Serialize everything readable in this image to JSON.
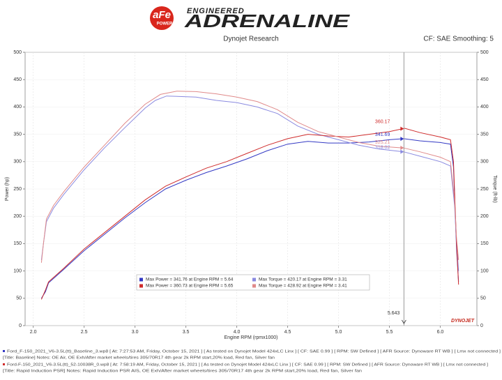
{
  "header": {
    "brand": "aFe",
    "brand_sub": "POWER",
    "tagline": "ENGINEERED",
    "product": "ADRENALINE"
  },
  "chart_data": {
    "type": "line",
    "title": "Dynojet Research",
    "subtitle": "CF: SAE Smoothing: 5",
    "x_label": "Engine RPM (rpmx1000)",
    "y_label": "Power (hp)",
    "y2_label": "Torque (ft-lb)",
    "xlim": [
      1.92,
      6.36
    ],
    "xticks": [
      {
        "value": 2,
        "label": "2.0"
      },
      2.5,
      {
        "value": 3,
        "label": "3.0"
      },
      3.5,
      {
        "value": 4,
        "label": "4.0"
      },
      4.5,
      {
        "value": 5,
        "label": "5.0"
      },
      5.5,
      {
        "value": 6,
        "label": "6.0"
      }
    ],
    "ylim": [
      0,
      500
    ],
    "yticks": [
      0,
      50,
      100,
      150,
      200,
      250,
      300,
      350,
      400,
      450,
      500
    ],
    "y2lim": [
      0,
      500
    ],
    "y2ticks": [
      0,
      50,
      100,
      150,
      200,
      250,
      300,
      350,
      400,
      450,
      500
    ],
    "grid": true,
    "series": [
      {
        "name": "Max Power = 341.76 at Engine RPM = 5.64",
        "color": "#3339c4",
        "x": [
          2.08,
          2.12,
          2.15,
          2.3,
          2.5,
          2.7,
          2.9,
          3.1,
          3.3,
          3.5,
          3.7,
          3.9,
          4.1,
          4.3,
          4.5,
          4.7,
          4.9,
          5.1,
          5.3,
          5.5,
          5.64,
          5.8,
          6.0,
          6.1,
          6.13,
          6.16,
          6.18
        ],
        "values": [
          50,
          62,
          78,
          103,
          137,
          167,
          197,
          225,
          250,
          266,
          280,
          292,
          305,
          320,
          332,
          337,
          334,
          334,
          336,
          340,
          342,
          338,
          335,
          332,
          290,
          140,
          80
        ]
      },
      {
        "name": "Max Torque = 420.17 at Engine RPM = 3.31",
        "color": "#8a8ae0",
        "axis": "y2",
        "x": [
          2.08,
          2.1,
          2.13,
          2.2,
          2.3,
          2.5,
          2.7,
          2.9,
          3.1,
          3.2,
          3.31,
          3.6,
          3.8,
          4.0,
          4.2,
          4.4,
          4.6,
          4.8,
          5.0,
          5.2,
          5.4,
          5.64,
          5.8,
          6.0,
          6.1,
          6.14,
          6.16,
          6.18
        ],
        "values": [
          120,
          150,
          190,
          215,
          240,
          285,
          325,
          362,
          398,
          412,
          420,
          418,
          412,
          408,
          400,
          388,
          365,
          350,
          340,
          330,
          323,
          318,
          310,
          300,
          292,
          220,
          150,
          100
        ]
      },
      {
        "name": "Max Power = 360.73 at Engine RPM = 5.65",
        "color": "#cf2b2b",
        "x": [
          2.08,
          2.12,
          2.15,
          2.3,
          2.5,
          2.7,
          2.9,
          3.1,
          3.3,
          3.5,
          3.7,
          3.9,
          4.1,
          4.3,
          4.5,
          4.7,
          4.9,
          5.1,
          5.3,
          5.5,
          5.65,
          5.8,
          6.0,
          6.1,
          6.13,
          6.16,
          6.18
        ],
        "values": [
          48,
          65,
          80,
          105,
          140,
          170,
          200,
          230,
          255,
          272,
          288,
          300,
          315,
          330,
          342,
          350,
          347,
          345,
          350,
          355,
          361,
          353,
          345,
          340,
          300,
          150,
          75
        ]
      },
      {
        "name": "Max Torque = 428.92 at Engine RPM = 3.41",
        "color": "#e08a8a",
        "axis": "y2",
        "x": [
          2.08,
          2.1,
          2.13,
          2.2,
          2.3,
          2.5,
          2.7,
          2.9,
          3.1,
          3.25,
          3.41,
          3.6,
          3.8,
          4.0,
          4.2,
          4.4,
          4.6,
          4.8,
          5.0,
          5.2,
          5.4,
          5.64,
          5.8,
          6.0,
          6.1,
          6.14,
          6.16,
          6.18
        ],
        "values": [
          115,
          150,
          195,
          220,
          245,
          290,
          330,
          370,
          405,
          423,
          429,
          428,
          424,
          418,
          410,
          395,
          372,
          355,
          345,
          335,
          328,
          325,
          318,
          308,
          300,
          230,
          160,
          120
        ]
      }
    ],
    "cursor": {
      "x": 5.643,
      "readings": [
        {
          "value": 360.17,
          "color": "#cf2b2b",
          "axis": "y"
        },
        {
          "value": 341.69,
          "color": "#3339c4",
          "axis": "y"
        },
        {
          "value": 325.21,
          "color": "#e08a8a",
          "axis": "y2"
        },
        {
          "value": 318.02,
          "color": "#8a8ae0",
          "axis": "y2"
        }
      ]
    },
    "watermark": "DYNOJET"
  },
  "footer": {
    "lines": [
      "Ford_F-150_2021_V6-3.5L(tt)_Baseline_3.wp8 [ At: 7:27:53 AM, Friday, October 15, 2021 ] [ As tested on Dynojet Model 424xLC Linx ] [ CF: SAE 0.99 ] [ RPM: SW Defined ] [ AFR Source: Dynoware RT WB ] [ Lmx not connected ]",
      "[Title: Baseline]  Notes: OE Air, OE Exh/After market wheels/tires 305/70R17 4th gear 2k RPM start,20% load, Red fan, Silver fan",
      "Ford-F-150_2021_V6-3.5L(tt)_52-10038R_0.wp8 [ At: 7:58:19 AM, Friday, October 15, 2021 ] [ As tested on Dynojet Model 424xLC Linx ] [ CF: SAE 0.99 ] [ RPM: SW Defined ] [ AFR Source: Dynoware RT WB ] [ Lmx not connected ]",
      "[Title: Rapid Induction PSR]  Notes: Rapid Induction PSR AIS, OE Exh/After market wheels/tires 305/70R17 4th gear 2k RPM start,20% load, Red fan, Silver fan"
    ]
  }
}
